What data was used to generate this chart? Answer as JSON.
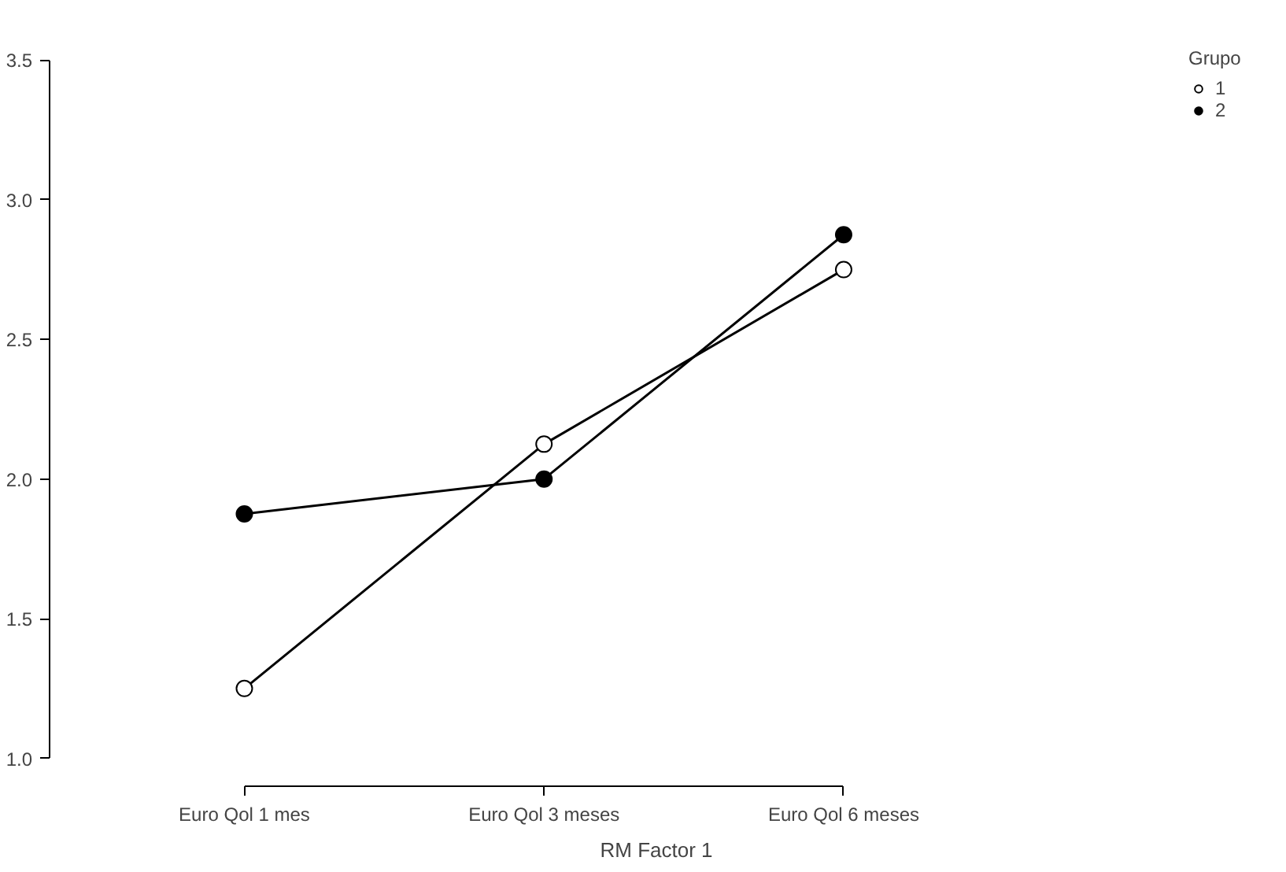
{
  "chart_data": {
    "type": "line",
    "xlabel": "RM Factor 1",
    "legend_title": "Grupo",
    "categories": [
      "Euro Qol 1 mes",
      "Euro Qol 3 meses",
      "Euro Qol 6 meses"
    ],
    "series": [
      {
        "name": "1",
        "color": "#ffffff",
        "values": [
          1.25,
          2.125,
          2.75
        ]
      },
      {
        "name": "2",
        "color": "#000000",
        "values": [
          1.875,
          2.0,
          2.875
        ]
      }
    ],
    "ylim": [
      1.0,
      3.5
    ],
    "yticks": [
      {
        "value": 1.0,
        "label": "1.0"
      },
      {
        "value": 1.5,
        "label": "1.5"
      },
      {
        "value": 2.0,
        "label": "2.0"
      },
      {
        "value": 2.5,
        "label": "2.5"
      },
      {
        "value": 3.0,
        "label": "3.0"
      },
      {
        "value": 3.5,
        "label": "3.5"
      }
    ],
    "legend": "top right",
    "marker": "circle",
    "line_style": "solid",
    "grid": false
  }
}
